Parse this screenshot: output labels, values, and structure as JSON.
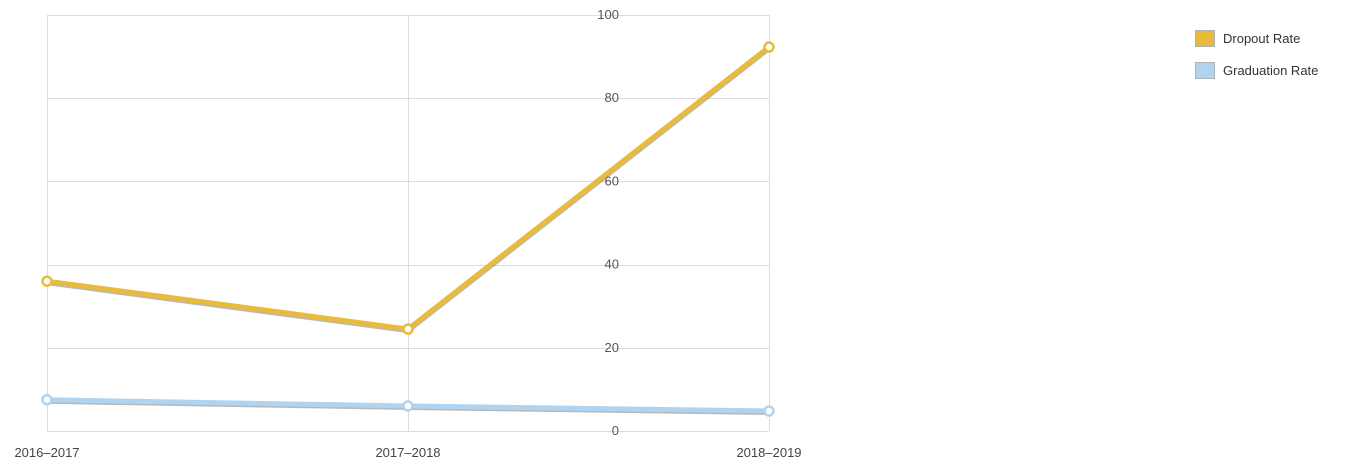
{
  "chart_data": {
    "type": "line",
    "categories": [
      "2016–2017",
      "2017–2018",
      "2018–2019"
    ],
    "series": [
      {
        "name": "Dropout Rate",
        "values": [
          36,
          24.5,
          92.3
        ],
        "color": "#e8bb3c"
      },
      {
        "name": "Graduation Rate",
        "values": [
          7.5,
          6,
          4.8
        ],
        "color": "#aed4f1"
      }
    ],
    "ylim": [
      0,
      100
    ],
    "yticks": [
      0,
      20,
      40,
      60,
      80,
      100
    ],
    "grid": true,
    "legend_position": "top-right"
  }
}
